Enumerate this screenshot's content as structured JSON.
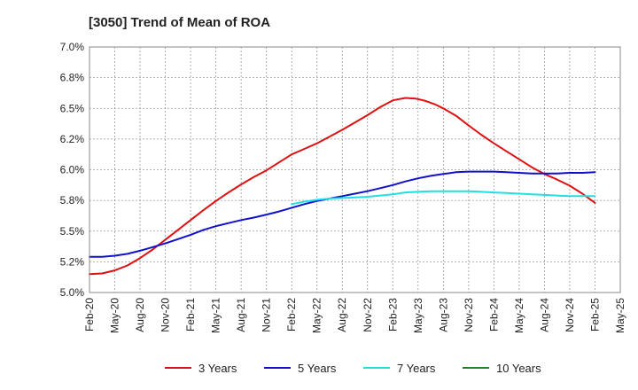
{
  "chart_data": {
    "type": "line",
    "title": "[3050]  Trend of Mean of ROA",
    "xlabel": "",
    "ylabel": "",
    "ylim": [
      5.0,
      7.0
    ],
    "y_ticks": [
      "5.0%",
      "5.2%",
      "5.5%",
      "5.8%",
      "6.0%",
      "6.2%",
      "6.5%",
      "6.8%",
      "7.0%"
    ],
    "y_tick_values": [
      5.0,
      5.25,
      5.5,
      5.75,
      6.0,
      6.25,
      6.5,
      6.75,
      7.0
    ],
    "x_ticks": [
      "Feb-20",
      "May-20",
      "Aug-20",
      "Nov-20",
      "Feb-21",
      "May-21",
      "Aug-21",
      "Nov-21",
      "Feb-22",
      "May-22",
      "Aug-22",
      "Nov-22",
      "Feb-23",
      "May-23",
      "Aug-23",
      "Nov-23",
      "Feb-24",
      "May-24",
      "Aug-24",
      "Nov-24",
      "Feb-25",
      "May-25"
    ],
    "x_note": "x values are quarter indices: 0 = Feb-20, 21 = May-25",
    "grid": true,
    "legend_position": "bottom",
    "series": [
      {
        "name": "3 Years",
        "color": "#dd1111",
        "x": [
          0,
          0.5,
          1,
          1.5,
          2,
          2.5,
          3,
          3.5,
          4,
          4.5,
          5,
          5.5,
          6,
          6.5,
          7,
          7.5,
          8,
          8.5,
          9,
          9.5,
          10,
          10.5,
          11,
          11.5,
          12,
          12.5,
          12.9,
          13.3,
          13.7,
          14,
          14.5,
          15,
          15.5,
          16,
          16.5,
          17,
          17.5,
          18,
          18.5,
          19,
          19.5,
          20
        ],
        "values": [
          5.15,
          5.155,
          5.18,
          5.22,
          5.28,
          5.35,
          5.43,
          5.51,
          5.59,
          5.67,
          5.745,
          5.815,
          5.88,
          5.94,
          5.995,
          6.06,
          6.125,
          6.17,
          6.215,
          6.27,
          6.325,
          6.385,
          6.445,
          6.51,
          6.565,
          6.585,
          6.58,
          6.56,
          6.53,
          6.5,
          6.44,
          6.36,
          6.285,
          6.215,
          6.15,
          6.085,
          6.02,
          5.965,
          5.92,
          5.87,
          5.805,
          5.73
        ]
      },
      {
        "name": "5 Years",
        "color": "#1111cc",
        "x": [
          0,
          0.5,
          1,
          1.5,
          2,
          2.5,
          3,
          3.5,
          4,
          4.5,
          5,
          5.5,
          6,
          6.5,
          7,
          7.5,
          8,
          8.5,
          9,
          9.5,
          10,
          10.5,
          11,
          11.5,
          12,
          12.5,
          13,
          13.5,
          14,
          14.5,
          15,
          15.5,
          16,
          16.5,
          17,
          17.5,
          18,
          18.5,
          19,
          19.5,
          20
        ],
        "values": [
          5.29,
          5.29,
          5.3,
          5.315,
          5.34,
          5.37,
          5.4,
          5.435,
          5.47,
          5.51,
          5.54,
          5.565,
          5.59,
          5.61,
          5.635,
          5.66,
          5.69,
          5.72,
          5.745,
          5.765,
          5.785,
          5.805,
          5.825,
          5.85,
          5.875,
          5.905,
          5.93,
          5.95,
          5.965,
          5.98,
          5.985,
          5.985,
          5.985,
          5.98,
          5.975,
          5.97,
          5.97,
          5.97,
          5.975,
          5.975,
          5.98
        ]
      },
      {
        "name": "7 Years",
        "color": "#22e0e0",
        "x": [
          8,
          8.5,
          9,
          9.5,
          10,
          10.5,
          11,
          11.5,
          12,
          12.5,
          13,
          13.5,
          14,
          14.5,
          15,
          15.5,
          16,
          16.5,
          17,
          17.5,
          18,
          18.5,
          19,
          19.5,
          20
        ],
        "values": [
          5.72,
          5.74,
          5.755,
          5.765,
          5.77,
          5.775,
          5.78,
          5.79,
          5.8,
          5.815,
          5.82,
          5.825,
          5.825,
          5.825,
          5.825,
          5.82,
          5.815,
          5.81,
          5.805,
          5.8,
          5.795,
          5.79,
          5.785,
          5.785,
          5.785
        ]
      },
      {
        "name": "10 Years",
        "color": "#228822",
        "x": [],
        "values": []
      }
    ]
  }
}
